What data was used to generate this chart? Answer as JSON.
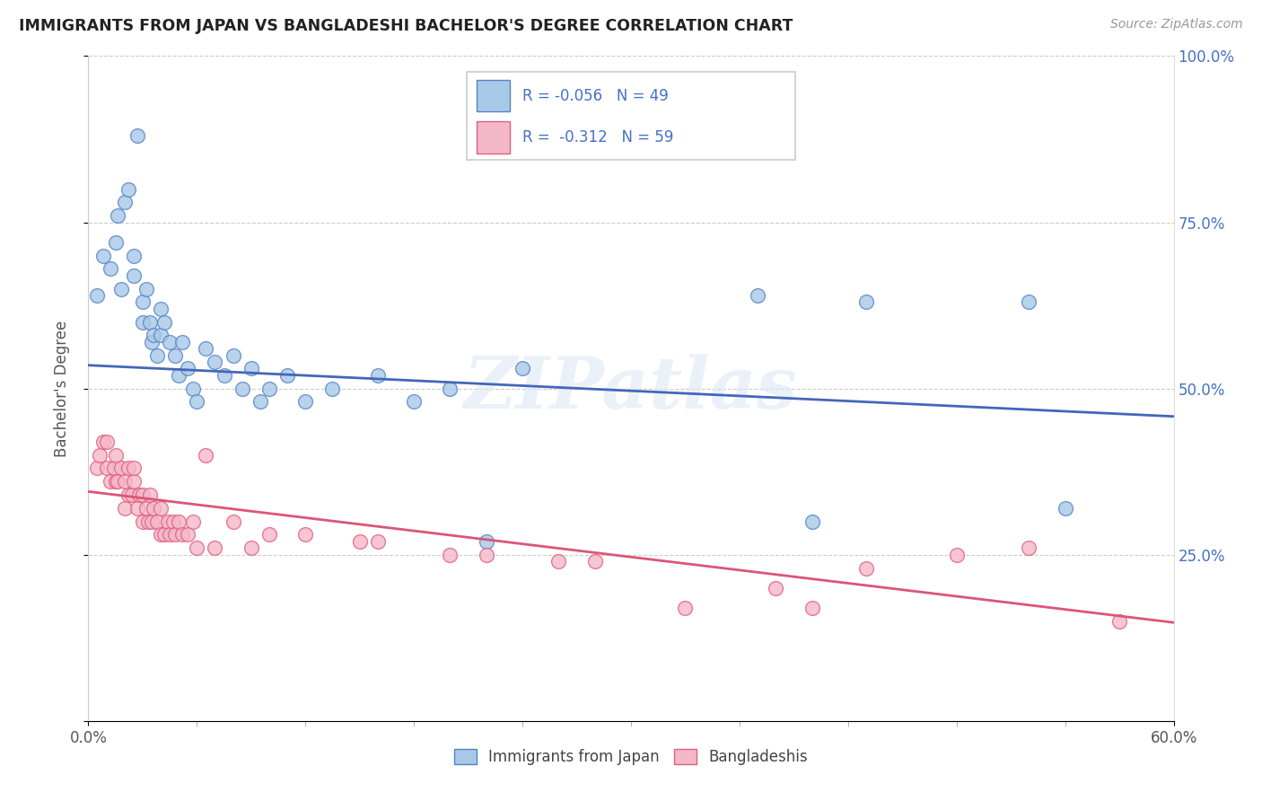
{
  "title": "IMMIGRANTS FROM JAPAN VS BANGLADESHI BACHELOR'S DEGREE CORRELATION CHART",
  "source": "Source: ZipAtlas.com",
  "ylabel": "Bachelor's Degree",
  "xlim": [
    0.0,
    0.6
  ],
  "ylim": [
    0.0,
    1.0
  ],
  "xtick_vals": [
    0.0,
    0.6
  ],
  "xtick_labels": [
    "0.0%",
    "60.0%"
  ],
  "ytick_vals": [
    0.0,
    0.25,
    0.5,
    0.75,
    1.0
  ],
  "ytick_labels_right": [
    "",
    "25.0%",
    "50.0%",
    "75.0%",
    "100.0%"
  ],
  "blue_color": "#a8c8e8",
  "pink_color": "#f4b8c8",
  "blue_edge_color": "#5585c5",
  "pink_edge_color": "#e06080",
  "blue_line_color": "#4466bb",
  "pink_line_color": "#dd5577",
  "text_color": "#4472c4",
  "watermark": "ZIPatlas",
  "blue_x": [
    0.005,
    0.008,
    0.012,
    0.015,
    0.016,
    0.018,
    0.02,
    0.022,
    0.025,
    0.025,
    0.027,
    0.03,
    0.03,
    0.032,
    0.034,
    0.035,
    0.036,
    0.038,
    0.04,
    0.04,
    0.042,
    0.045,
    0.048,
    0.05,
    0.052,
    0.055,
    0.058,
    0.06,
    0.065,
    0.07,
    0.075,
    0.08,
    0.085,
    0.09,
    0.095,
    0.1,
    0.11,
    0.12,
    0.135,
    0.16,
    0.18,
    0.2,
    0.22,
    0.24,
    0.37,
    0.4,
    0.43,
    0.52,
    0.54
  ],
  "blue_y": [
    0.64,
    0.7,
    0.68,
    0.72,
    0.76,
    0.65,
    0.78,
    0.8,
    0.67,
    0.7,
    0.88,
    0.6,
    0.63,
    0.65,
    0.6,
    0.57,
    0.58,
    0.55,
    0.58,
    0.62,
    0.6,
    0.57,
    0.55,
    0.52,
    0.57,
    0.53,
    0.5,
    0.48,
    0.56,
    0.54,
    0.52,
    0.55,
    0.5,
    0.53,
    0.48,
    0.5,
    0.52,
    0.48,
    0.5,
    0.52,
    0.48,
    0.5,
    0.27,
    0.53,
    0.64,
    0.3,
    0.63,
    0.63,
    0.32
  ],
  "pink_x": [
    0.005,
    0.006,
    0.008,
    0.01,
    0.01,
    0.012,
    0.014,
    0.015,
    0.015,
    0.016,
    0.018,
    0.02,
    0.02,
    0.022,
    0.022,
    0.024,
    0.025,
    0.025,
    0.027,
    0.028,
    0.03,
    0.03,
    0.032,
    0.033,
    0.034,
    0.035,
    0.036,
    0.038,
    0.04,
    0.04,
    0.042,
    0.044,
    0.045,
    0.047,
    0.048,
    0.05,
    0.052,
    0.055,
    0.058,
    0.06,
    0.065,
    0.07,
    0.08,
    0.09,
    0.1,
    0.12,
    0.15,
    0.16,
    0.2,
    0.22,
    0.26,
    0.28,
    0.33,
    0.38,
    0.4,
    0.43,
    0.48,
    0.52,
    0.57
  ],
  "pink_y": [
    0.38,
    0.4,
    0.42,
    0.38,
    0.42,
    0.36,
    0.38,
    0.36,
    0.4,
    0.36,
    0.38,
    0.32,
    0.36,
    0.34,
    0.38,
    0.34,
    0.36,
    0.38,
    0.32,
    0.34,
    0.3,
    0.34,
    0.32,
    0.3,
    0.34,
    0.3,
    0.32,
    0.3,
    0.28,
    0.32,
    0.28,
    0.3,
    0.28,
    0.3,
    0.28,
    0.3,
    0.28,
    0.28,
    0.3,
    0.26,
    0.4,
    0.26,
    0.3,
    0.26,
    0.28,
    0.28,
    0.27,
    0.27,
    0.25,
    0.25,
    0.24,
    0.24,
    0.17,
    0.2,
    0.17,
    0.23,
    0.25,
    0.26,
    0.15
  ],
  "blue_trend_x": [
    0.0,
    0.6
  ],
  "blue_trend_y": [
    0.535,
    0.458
  ],
  "pink_trend_x": [
    0.0,
    0.6
  ],
  "pink_trend_y": [
    0.345,
    0.148
  ],
  "legend_x1": "Immigrants from Japan",
  "legend_x2": "Bangladeshis",
  "legend_r1": "R = -0.056",
  "legend_n1": "N = 49",
  "legend_r2": "R =  -0.312",
  "legend_n2": "N = 59"
}
